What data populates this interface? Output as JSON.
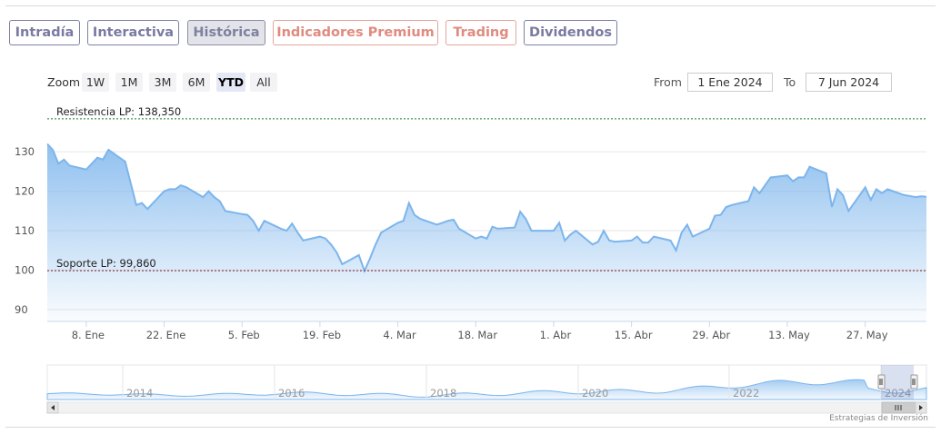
{
  "tabs": [
    {
      "label": "Intradía",
      "active": false,
      "premium": false
    },
    {
      "label": "Interactiva",
      "active": false,
      "premium": false
    },
    {
      "label": "Histórica",
      "active": true,
      "premium": false
    },
    {
      "label": "Indicadores Premium",
      "active": false,
      "premium": true
    },
    {
      "label": "Trading",
      "active": false,
      "premium": true
    },
    {
      "label": "Dividendos",
      "active": false,
      "premium": false
    }
  ],
  "zoom": {
    "label": "Zoom",
    "buttons": [
      "1W",
      "1M",
      "3M",
      "6M",
      "YTD",
      "All"
    ],
    "selected": "YTD"
  },
  "range": {
    "from_label": "From",
    "from_value": "1 Ene 2024",
    "to_label": "To",
    "to_value": "7 Jun 2024"
  },
  "credits": "Estrategias de Inversión",
  "colors": {
    "line": "#7cb5ec",
    "resistance": "#1f7a3a",
    "support": "#8b1a1a",
    "accent": "#7a7aa2",
    "premium": "#e08b7f"
  },
  "chart_data": {
    "type": "area",
    "x_unit": "date",
    "x_range": [
      "2024-01-01",
      "2024-06-07"
    ],
    "ylim": [
      87,
      142
    ],
    "y_ticks": [
      90,
      100,
      110,
      120,
      130
    ],
    "x_ticks": [
      {
        "date": "2024-01-08",
        "label": "8. Ene"
      },
      {
        "date": "2024-01-22",
        "label": "22. Ene"
      },
      {
        "date": "2024-02-05",
        "label": "5. Feb"
      },
      {
        "date": "2024-02-19",
        "label": "19. Feb"
      },
      {
        "date": "2024-03-04",
        "label": "4. Mar"
      },
      {
        "date": "2024-03-18",
        "label": "18. Mar"
      },
      {
        "date": "2024-04-01",
        "label": "1. Abr"
      },
      {
        "date": "2024-04-15",
        "label": "15. Abr"
      },
      {
        "date": "2024-04-29",
        "label": "29. Abr"
      },
      {
        "date": "2024-05-13",
        "label": "13. May"
      },
      {
        "date": "2024-05-27",
        "label": "27. May"
      }
    ],
    "plot_lines": [
      {
        "label": "Resistencia LP: 138,350",
        "value": 138.35,
        "style": "dashed",
        "color": "#1f7a3a"
      },
      {
        "label": "Soporte LP: 99,860",
        "value": 99.86,
        "style": "dashed",
        "color": "#8b1a1a"
      }
    ],
    "grid": true,
    "legend": "none",
    "series": [
      {
        "x": [
          "2024-01-01",
          "2024-01-02",
          "2024-01-03",
          "2024-01-04",
          "2024-01-05",
          "2024-01-08",
          "2024-01-09",
          "2024-01-10",
          "2024-01-11",
          "2024-01-12",
          "2024-01-15",
          "2024-01-16",
          "2024-01-17",
          "2024-01-18",
          "2024-01-19",
          "2024-01-22",
          "2024-01-23",
          "2024-01-24",
          "2024-01-25",
          "2024-01-26",
          "2024-01-29",
          "2024-01-30",
          "2024-01-31",
          "2024-02-01",
          "2024-02-02",
          "2024-02-05",
          "2024-02-06",
          "2024-02-07",
          "2024-02-08",
          "2024-02-09",
          "2024-02-12",
          "2024-02-13",
          "2024-02-14",
          "2024-02-15",
          "2024-02-16",
          "2024-02-19",
          "2024-02-20",
          "2024-02-21",
          "2024-02-22",
          "2024-02-23",
          "2024-02-26",
          "2024-02-27",
          "2024-02-28",
          "2024-02-29",
          "2024-03-01",
          "2024-03-04",
          "2024-03-05",
          "2024-03-06",
          "2024-03-07",
          "2024-03-08",
          "2024-03-11",
          "2024-03-12",
          "2024-03-13",
          "2024-03-14",
          "2024-03-15",
          "2024-03-18",
          "2024-03-19",
          "2024-03-20",
          "2024-03-21",
          "2024-03-22",
          "2024-03-25",
          "2024-03-26",
          "2024-03-27",
          "2024-03-28",
          "2024-04-01",
          "2024-04-02",
          "2024-04-03",
          "2024-04-04",
          "2024-04-05",
          "2024-04-08",
          "2024-04-09",
          "2024-04-10",
          "2024-04-11",
          "2024-04-12",
          "2024-04-15",
          "2024-04-16",
          "2024-04-17",
          "2024-04-18",
          "2024-04-19",
          "2024-04-22",
          "2024-04-23",
          "2024-04-24",
          "2024-04-25",
          "2024-04-26",
          "2024-04-29",
          "2024-04-30",
          "2024-05-01",
          "2024-05-02",
          "2024-05-03",
          "2024-05-06",
          "2024-05-07",
          "2024-05-08",
          "2024-05-09",
          "2024-05-10",
          "2024-05-13",
          "2024-05-14",
          "2024-05-15",
          "2024-05-16",
          "2024-05-17",
          "2024-05-20",
          "2024-05-21",
          "2024-05-22",
          "2024-05-23",
          "2024-05-24",
          "2024-05-27",
          "2024-05-28",
          "2024-05-29",
          "2024-05-30",
          "2024-05-31",
          "2024-06-03",
          "2024-06-04",
          "2024-06-05",
          "2024-06-06",
          "2024-06-07"
        ],
        "y": [
          132.0,
          130.5,
          127.0,
          128.0,
          126.5,
          125.5,
          127.0,
          128.5,
          128.0,
          130.5,
          127.5,
          122.0,
          116.5,
          117.0,
          115.5,
          120.0,
          120.5,
          120.5,
          121.5,
          121.0,
          118.5,
          120.0,
          118.5,
          117.5,
          115.0,
          114.2,
          114.0,
          112.5,
          110.0,
          112.5,
          110.5,
          110.0,
          111.8,
          109.5,
          107.5,
          108.5,
          108.0,
          106.5,
          104.5,
          101.5,
          103.8,
          99.8,
          103.0,
          106.5,
          109.5,
          112.0,
          112.5,
          117.0,
          114.0,
          113.0,
          111.5,
          112.0,
          112.5,
          112.8,
          110.5,
          108.0,
          108.5,
          108.0,
          111.0,
          110.5,
          110.8,
          114.8,
          113.0,
          110.0,
          110.0,
          112.0,
          107.5,
          109.0,
          110.0,
          106.5,
          107.2,
          110.0,
          107.5,
          107.2,
          107.5,
          108.5,
          107.0,
          107.0,
          108.5,
          107.5,
          105.0,
          109.5,
          111.5,
          108.5,
          110.5,
          113.8,
          114.0,
          116.0,
          116.5,
          117.5,
          121.0,
          119.5,
          121.5,
          123.5,
          124.0,
          122.5,
          123.5,
          123.5,
          126.2,
          124.5,
          116.0,
          120.5,
          119.0,
          115.0,
          121.0,
          117.8,
          120.5,
          119.5,
          120.5,
          119.0,
          118.8,
          118.5,
          118.7,
          118.6
        ]
      }
    ],
    "navigator": {
      "x_labels": [
        "2014",
        "2016",
        "2018",
        "2020",
        "2022",
        "2024"
      ]
    }
  }
}
